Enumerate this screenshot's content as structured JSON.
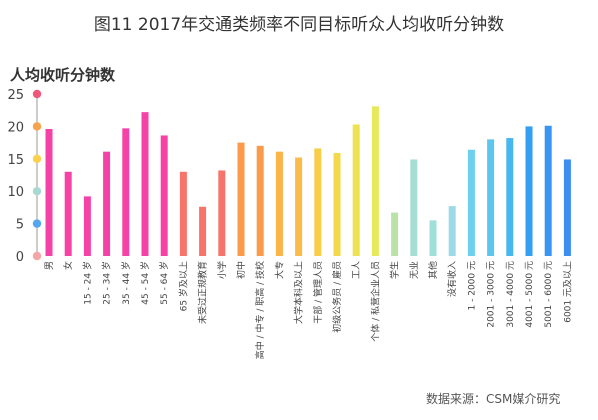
{
  "header": {
    "title": "图11 2017年交通类频率不同目标听众人均收听分钟数",
    "subtitle": "人均收听分钟数",
    "source": "数据来源：CSM媒介研究"
  },
  "chart_data": {
    "type": "bar",
    "title": "图11 2017年交通类频率不同目标听众人均收听分钟数",
    "ylabel": "人均收听分钟数",
    "xlabel": "",
    "ylim": [
      0,
      25
    ],
    "yticks": [
      "0",
      "5",
      "10",
      "15",
      "20",
      "25"
    ],
    "grid": false,
    "legend": "none",
    "categories": [
      "男",
      "女",
      "15 - 24 岁",
      "25 - 34 岁",
      "35 - 44 岁",
      "45 - 54 岁",
      "55 - 64 岁",
      "65 岁及以上",
      "未受过正规教育",
      "小学",
      "初中",
      "高中 / 中专 / 职高 / 技校",
      "大专",
      "大学本科及以上",
      "干部 / 管理人员",
      "初级公务员 / 雇员",
      "工人",
      "个体 / 私营企业人员",
      "学生",
      "无业",
      "其他",
      "没有收入",
      "1 - 2000 元",
      "2001 - 3000 元",
      "3001 - 4000 元",
      "4001 - 5000 元",
      "5001 - 6000 元",
      "6001 元及以上"
    ],
    "values": [
      19.6,
      13.0,
      9.2,
      16.1,
      19.7,
      22.2,
      18.6,
      13.0,
      7.6,
      13.2,
      17.5,
      17.0,
      16.1,
      15.2,
      16.6,
      15.9,
      20.3,
      23.1,
      6.7,
      14.9,
      5.5,
      7.7,
      16.4,
      18.0,
      18.2,
      20.0,
      20.1,
      14.9
    ],
    "colors": [
      "#f542a6",
      "#f542a6",
      "#f542a6",
      "#f542a6",
      "#f542a6",
      "#f542a6",
      "#f542a6",
      "#f7746a",
      "#f7746a",
      "#f7746a",
      "#fb9a48",
      "#fb9a48",
      "#fbb448",
      "#fbbb48",
      "#f8cd48",
      "#f3d84a",
      "#eee250",
      "#e6ea5a",
      "#b9e3a6",
      "#a6ded3",
      "#9fe0d9",
      "#9bdbe8",
      "#6cd0ef",
      "#5cc6ef",
      "#47b8ef",
      "#329ff0",
      "#3797f0",
      "#3a8ff0"
    ],
    "axis_dot_colors": [
      "#f5a5a5",
      "#54a7ef",
      "#a9d8d3",
      "#fbd04d",
      "#f7a24d",
      "#f0577b"
    ]
  }
}
